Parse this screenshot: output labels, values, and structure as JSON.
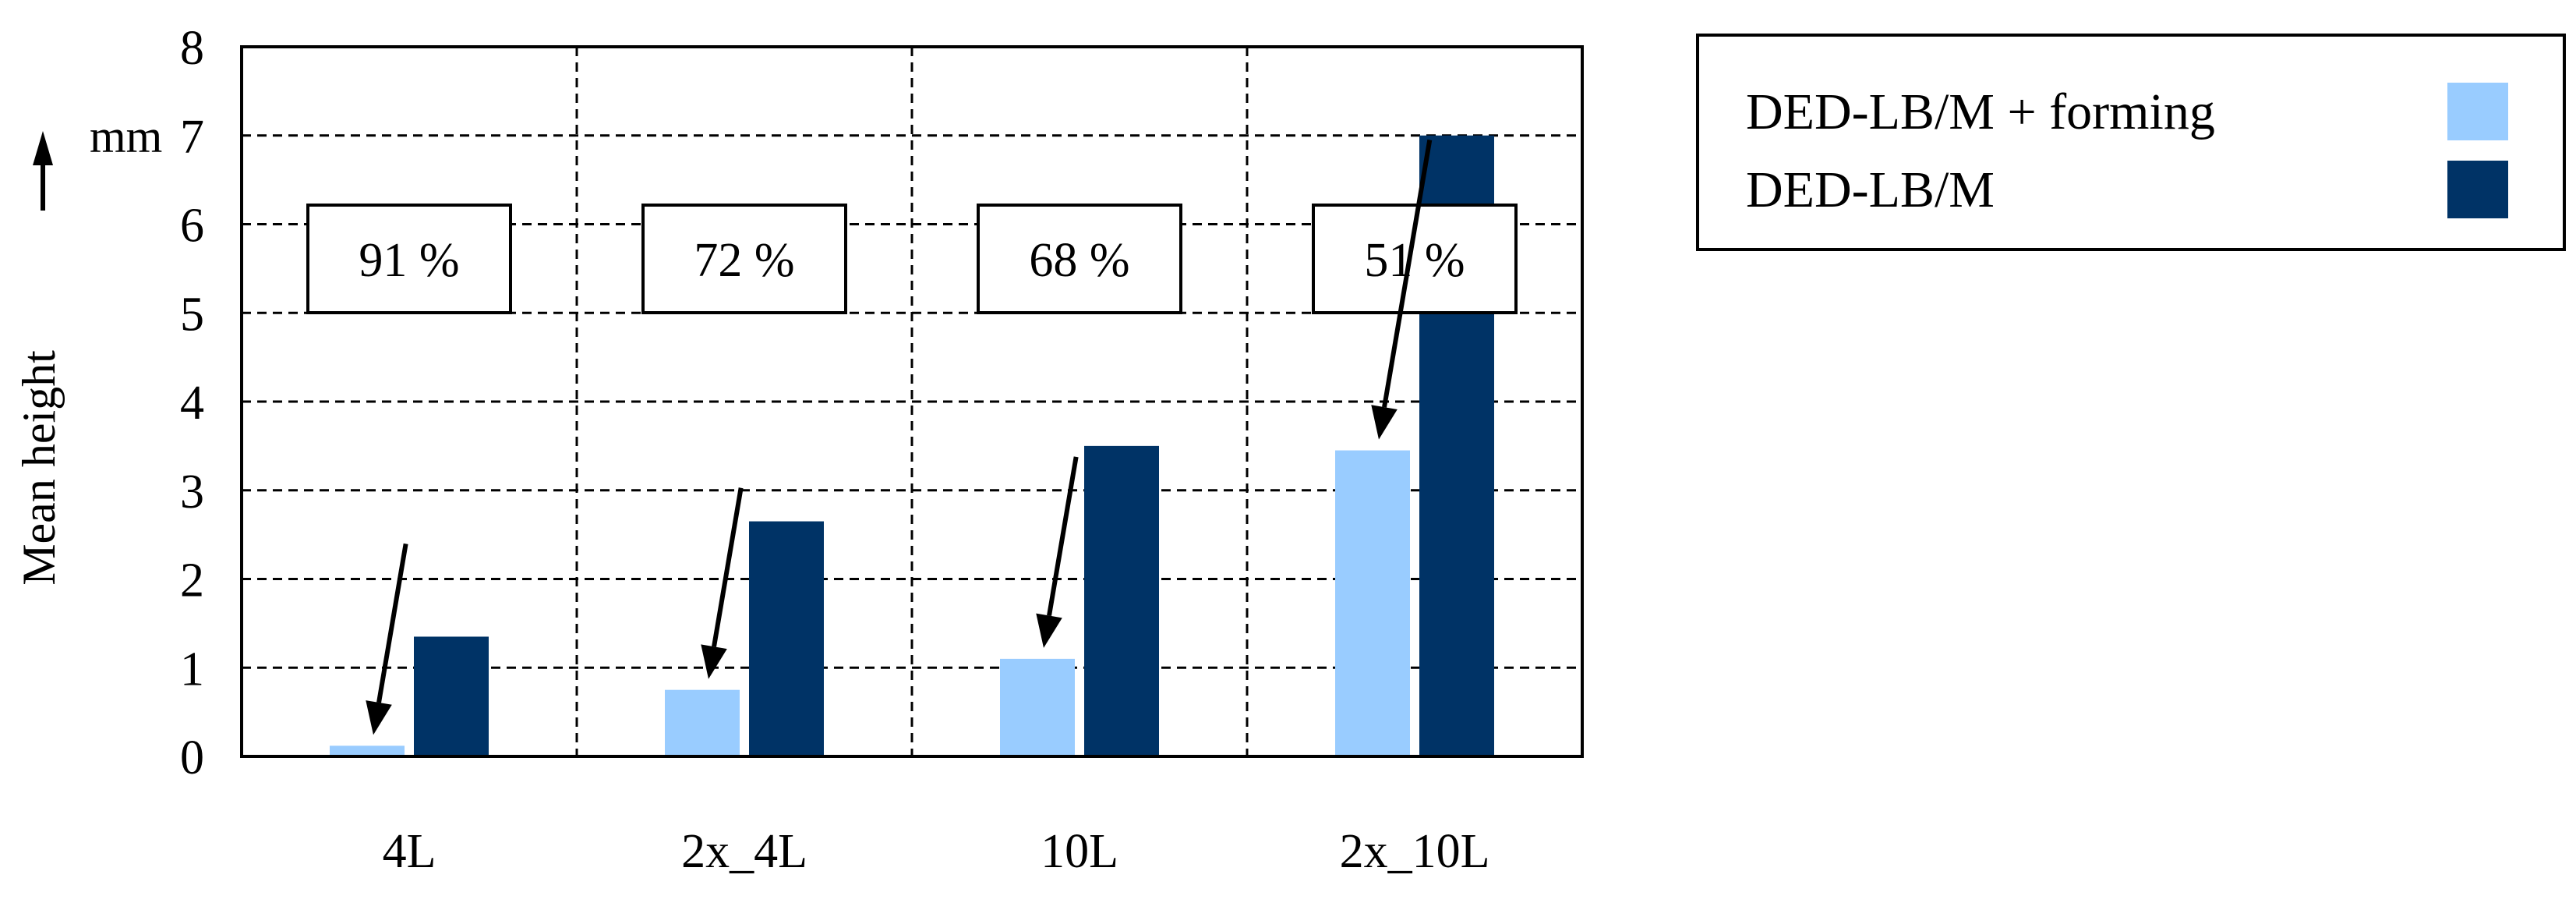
{
  "chart_data": {
    "type": "bar",
    "categories": [
      "4L",
      "2x_4L",
      "10L",
      "2x_10L"
    ],
    "series": [
      {
        "name": "DED-LB/M + forming",
        "values": [
          0.12,
          0.75,
          1.1,
          3.45
        ],
        "color": "#99ccff"
      },
      {
        "name": "DED-LB/M",
        "values": [
          1.35,
          2.65,
          3.5,
          7.0
        ],
        "color": "#003366"
      }
    ],
    "ylabel": "Mean height",
    "yunit": "mm",
    "ylim": [
      0,
      8
    ],
    "yticks": [
      "0",
      "1",
      "2",
      "3",
      "4",
      "5",
      "6",
      "7",
      "8"
    ],
    "grid": true,
    "legend_position": "right",
    "annotations": [
      "91 %",
      "72 %",
      "68 %",
      "51 %"
    ]
  }
}
